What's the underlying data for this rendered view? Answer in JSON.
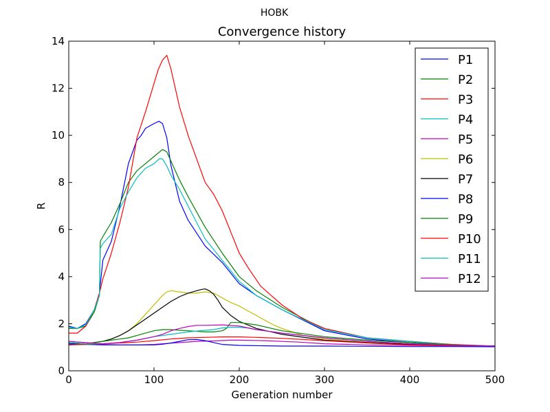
{
  "figure": {
    "suptitle": "HOBK"
  },
  "chart_data": {
    "type": "line",
    "title": "Convergence history",
    "xlabel": "Generation number",
    "ylabel": "R",
    "xlim": [
      0,
      500
    ],
    "ylim": [
      0,
      14
    ],
    "xticks": [
      0,
      100,
      200,
      300,
      400,
      500
    ],
    "yticks": [
      0,
      2,
      4,
      6,
      8,
      10,
      12,
      14
    ],
    "grid": false,
    "legend_position": "top-right",
    "series": [
      {
        "name": "P1",
        "color": "#0000ff",
        "x": [
          0,
          10,
          20,
          30,
          36,
          40,
          50,
          60,
          70,
          80,
          85,
          90,
          100,
          106,
          110,
          115,
          120,
          130,
          140,
          160,
          180,
          200,
          220,
          250,
          300,
          350,
          400,
          450,
          500
        ],
        "y": [
          1.9,
          1.8,
          2.0,
          2.6,
          3.3,
          4.7,
          5.5,
          7.0,
          8.8,
          9.8,
          10.0,
          10.3,
          10.5,
          10.6,
          10.5,
          9.9,
          8.7,
          7.2,
          6.4,
          5.3,
          4.6,
          3.7,
          3.2,
          2.6,
          1.7,
          1.35,
          1.2,
          1.1,
          1.05
        ]
      },
      {
        "name": "P2",
        "color": "#008000",
        "x": [
          0,
          10,
          20,
          30,
          36,
          37,
          40,
          50,
          60,
          70,
          80,
          90,
          100,
          110,
          115,
          120,
          130,
          140,
          160,
          180,
          200,
          220,
          250,
          300,
          350,
          400,
          450,
          500
        ],
        "y": [
          1.8,
          1.8,
          1.9,
          2.5,
          3.2,
          5.5,
          5.7,
          6.3,
          7.1,
          8.0,
          8.5,
          8.8,
          9.1,
          9.4,
          9.3,
          8.9,
          8.1,
          7.4,
          6.1,
          5.0,
          4.0,
          3.4,
          2.7,
          1.75,
          1.4,
          1.25,
          1.1,
          1.05
        ]
      },
      {
        "name": "P3",
        "color": "#ff0000",
        "x": [
          0,
          10,
          20,
          30,
          36,
          40,
          50,
          60,
          70,
          80,
          90,
          100,
          105,
          110,
          115,
          120,
          130,
          140,
          150,
          160,
          170,
          180,
          190,
          200,
          210,
          225,
          250,
          275,
          300,
          350,
          400,
          450,
          500
        ],
        "y": [
          1.6,
          1.6,
          1.9,
          2.6,
          3.3,
          3.9,
          5.0,
          6.3,
          7.8,
          9.9,
          11.0,
          12.2,
          12.8,
          13.2,
          13.4,
          12.8,
          11.2,
          10.0,
          9.0,
          8.0,
          7.5,
          6.8,
          5.9,
          5.0,
          4.4,
          3.6,
          2.8,
          2.2,
          1.8,
          1.4,
          1.25,
          1.12,
          1.05
        ]
      },
      {
        "name": "P4",
        "color": "#00bfbf",
        "x": [
          0,
          10,
          20,
          30,
          36,
          37,
          40,
          50,
          60,
          70,
          80,
          85,
          90,
          100,
          106,
          110,
          115,
          120,
          130,
          140,
          160,
          180,
          200,
          220,
          250,
          300,
          350,
          400,
          450,
          500
        ],
        "y": [
          1.85,
          1.8,
          1.95,
          2.6,
          3.2,
          5.2,
          5.4,
          5.8,
          6.9,
          7.6,
          8.2,
          8.4,
          8.6,
          8.8,
          9.0,
          9.0,
          8.7,
          8.3,
          7.7,
          7.0,
          5.6,
          4.7,
          3.8,
          3.2,
          2.6,
          1.75,
          1.4,
          1.25,
          1.1,
          1.05
        ]
      },
      {
        "name": "P5",
        "color": "#bf00bf",
        "x": [
          0,
          20,
          40,
          60,
          80,
          100,
          110,
          130,
          150,
          170,
          190,
          200,
          230,
          270,
          300,
          350,
          400,
          450,
          500
        ],
        "y": [
          1.15,
          1.15,
          1.12,
          1.1,
          1.1,
          1.12,
          1.15,
          1.2,
          1.25,
          1.27,
          1.3,
          1.3,
          1.28,
          1.22,
          1.15,
          1.1,
          1.08,
          1.06,
          1.05
        ]
      },
      {
        "name": "P6",
        "color": "#bfbf00",
        "x": [
          0,
          20,
          30,
          40,
          50,
          60,
          70,
          80,
          90,
          100,
          105,
          110,
          115,
          120,
          130,
          140,
          150,
          160,
          170,
          180,
          190,
          200,
          210,
          220,
          230,
          240,
          250,
          275,
          300,
          350,
          400,
          450,
          500
        ],
        "y": [
          1.2,
          1.15,
          1.2,
          1.25,
          1.35,
          1.5,
          1.7,
          2.0,
          2.4,
          2.8,
          3.0,
          3.2,
          3.35,
          3.4,
          3.35,
          3.3,
          3.3,
          3.35,
          3.3,
          3.1,
          2.9,
          2.75,
          2.55,
          2.35,
          2.15,
          1.95,
          1.8,
          1.5,
          1.35,
          1.2,
          1.12,
          1.08,
          1.05
        ]
      },
      {
        "name": "P7",
        "color": "#000000",
        "x": [
          0,
          20,
          30,
          40,
          50,
          60,
          70,
          80,
          90,
          100,
          110,
          120,
          130,
          140,
          150,
          155,
          160,
          165,
          170,
          175,
          180,
          190,
          200,
          220,
          250,
          300,
          350,
          400,
          450,
          500
        ],
        "y": [
          1.2,
          1.15,
          1.2,
          1.25,
          1.35,
          1.5,
          1.7,
          1.95,
          2.2,
          2.45,
          2.7,
          2.95,
          3.15,
          3.3,
          3.4,
          3.45,
          3.48,
          3.4,
          3.25,
          3.0,
          2.7,
          2.35,
          2.1,
          1.8,
          1.55,
          1.3,
          1.2,
          1.12,
          1.08,
          1.05
        ]
      },
      {
        "name": "P8",
        "color": "#0000ff",
        "x": [
          0,
          20,
          40,
          60,
          80,
          100,
          110,
          120,
          130,
          140,
          150,
          160,
          170,
          180,
          200,
          250,
          300,
          350,
          400,
          450,
          500
        ],
        "y": [
          1.15,
          1.12,
          1.1,
          1.1,
          1.1,
          1.1,
          1.13,
          1.18,
          1.25,
          1.32,
          1.33,
          1.28,
          1.2,
          1.12,
          1.08,
          1.05,
          1.05,
          1.04,
          1.03,
          1.03,
          1.02
        ]
      },
      {
        "name": "P9",
        "color": "#008000",
        "x": [
          0,
          20,
          40,
          50,
          60,
          70,
          80,
          90,
          100,
          110,
          120,
          130,
          140,
          160,
          170,
          180,
          185,
          190,
          200,
          220,
          250,
          300,
          350,
          400,
          450,
          500
        ],
        "y": [
          1.1,
          1.15,
          1.25,
          1.3,
          1.35,
          1.4,
          1.5,
          1.6,
          1.7,
          1.75,
          1.75,
          1.72,
          1.7,
          1.65,
          1.65,
          1.7,
          1.8,
          2.05,
          2.05,
          1.95,
          1.7,
          1.45,
          1.3,
          1.2,
          1.1,
          1.05
        ]
      },
      {
        "name": "P10",
        "color": "#ff0000",
        "x": [
          0,
          20,
          40,
          60,
          80,
          100,
          120,
          140,
          160,
          180,
          200,
          220,
          250,
          300,
          350,
          400,
          450,
          500
        ],
        "y": [
          1.1,
          1.12,
          1.15,
          1.18,
          1.22,
          1.28,
          1.35,
          1.4,
          1.42,
          1.44,
          1.44,
          1.42,
          1.38,
          1.28,
          1.18,
          1.1,
          1.06,
          1.05
        ]
      },
      {
        "name": "P11",
        "color": "#00bfbf",
        "x": [
          0,
          20,
          40,
          60,
          80,
          100,
          120,
          140,
          160,
          170,
          180,
          190,
          200,
          210,
          220,
          250,
          300,
          350,
          400,
          450,
          500
        ],
        "y": [
          1.2,
          1.15,
          1.15,
          1.2,
          1.3,
          1.45,
          1.55,
          1.65,
          1.72,
          1.75,
          1.82,
          1.85,
          1.85,
          1.82,
          1.75,
          1.6,
          1.4,
          1.25,
          1.15,
          1.08,
          1.05
        ]
      },
      {
        "name": "P12",
        "color": "#bf00bf",
        "x": [
          0,
          20,
          40,
          60,
          80,
          100,
          110,
          120,
          130,
          140,
          150,
          160,
          180,
          200,
          220,
          250,
          300,
          350,
          400,
          450,
          500
        ],
        "y": [
          1.25,
          1.2,
          1.15,
          1.2,
          1.3,
          1.45,
          1.55,
          1.7,
          1.8,
          1.88,
          1.93,
          1.93,
          1.95,
          1.9,
          1.75,
          1.6,
          1.4,
          1.25,
          1.15,
          1.08,
          1.05
        ]
      }
    ]
  }
}
